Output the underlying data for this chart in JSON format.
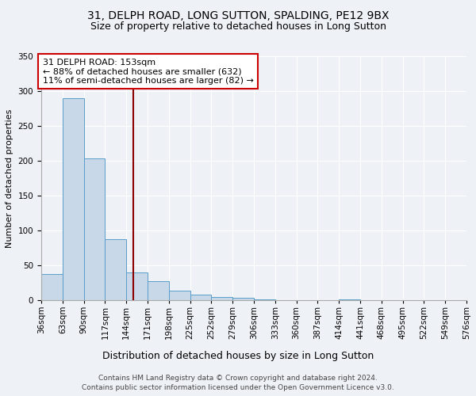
{
  "title": "31, DELPH ROAD, LONG SUTTON, SPALDING, PE12 9BX",
  "subtitle": "Size of property relative to detached houses in Long Sutton",
  "xlabel": "Distribution of detached houses by size in Long Sutton",
  "ylabel": "Number of detached properties",
  "footnote1": "Contains HM Land Registry data © Crown copyright and database right 2024.",
  "footnote2": "Contains public sector information licensed under the Open Government Licence v3.0.",
  "annotation_line1": "31 DELPH ROAD: 153sqm",
  "annotation_line2": "← 88% of detached houses are smaller (632)",
  "annotation_line3": "11% of semi-detached houses are larger (82) →",
  "property_size": 153,
  "bin_edges": [
    36,
    63,
    90,
    117,
    144,
    171,
    198,
    225,
    252,
    279,
    306,
    333,
    360,
    387,
    414,
    441,
    468,
    495,
    522,
    549,
    576
  ],
  "bin_labels": [
    "36sqm",
    "63sqm",
    "90sqm",
    "117sqm",
    "144sqm",
    "171sqm",
    "198sqm",
    "225sqm",
    "252sqm",
    "279sqm",
    "306sqm",
    "333sqm",
    "360sqm",
    "387sqm",
    "414sqm",
    "441sqm",
    "468sqm",
    "495sqm",
    "522sqm",
    "549sqm",
    "576sqm"
  ],
  "bar_values": [
    38,
    290,
    203,
    87,
    40,
    27,
    14,
    8,
    5,
    3,
    1,
    0,
    0,
    0,
    1,
    0,
    0,
    0,
    0,
    0
  ],
  "bar_color": "#c8d8e8",
  "bar_edge_color": "#5a9ec9",
  "vline_color": "#8b0000",
  "vline_x": 153,
  "annotation_box_edge": "#cc0000",
  "background_color": "#eef2f7",
  "plot_bg_color": "#eef2f7",
  "ylim": [
    0,
    350
  ],
  "title_fontsize": 10,
  "subtitle_fontsize": 9,
  "xlabel_fontsize": 9,
  "ylabel_fontsize": 8,
  "annotation_fontsize": 8,
  "tick_fontsize": 7.5,
  "footnote_fontsize": 6.5
}
